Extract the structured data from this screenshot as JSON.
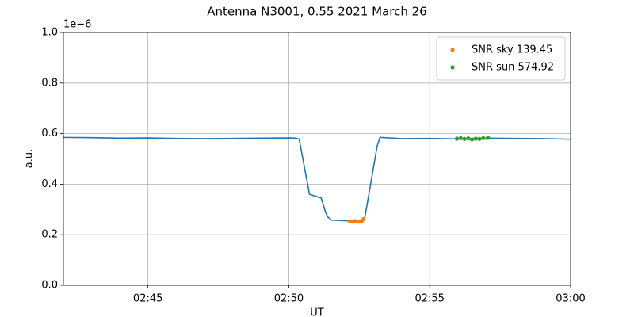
{
  "chart_data": {
    "type": "line",
    "title": "Antenna N3001, 0.55 2021 March 26",
    "x_label": "UT",
    "y_label": "a.u.",
    "y_offset_label": "1e−6",
    "xlim": [
      "02:42:00",
      "03:00:00"
    ],
    "xticks": [
      {
        "value": "02:45:00",
        "label": "02:45"
      },
      {
        "value": "02:50:00",
        "label": "02:50"
      },
      {
        "value": "02:55:00",
        "label": "02:55"
      },
      {
        "value": "03:00:00",
        "label": "03:00"
      }
    ],
    "ylim": [
      0,
      1
    ],
    "yticks": [
      {
        "value": 0,
        "label": "0.0"
      },
      {
        "value": 0.2,
        "label": "0.2"
      },
      {
        "value": 0.4,
        "label": "0.4"
      },
      {
        "value": 0.6,
        "label": "0.6"
      },
      {
        "value": 0.8,
        "label": "0.8"
      },
      {
        "value": 1,
        "label": "1.0"
      }
    ],
    "grid": true,
    "legend": "upper right",
    "series": [
      {
        "style": "line",
        "color": "#1f77b4",
        "x": [
          "02:42:00",
          "02:43:00",
          "02:44:00",
          "02:45:00",
          "02:46:00",
          "02:47:00",
          "02:48:00",
          "02:49:00",
          "02:50:00",
          "02:50:15",
          "02:50:22",
          "02:50:44",
          "02:51:09",
          "02:51:18",
          "02:51:23",
          "02:51:31",
          "02:52:08",
          "02:52:35",
          "02:52:42",
          "02:52:56",
          "02:53:08",
          "02:53:14",
          "02:54:00",
          "02:55:00",
          "02:56:00",
          "02:57:00",
          "02:58:00",
          "02:59:00",
          "03:00:00"
        ],
        "values": [
          0.585,
          0.584,
          0.582,
          0.583,
          0.581,
          0.58,
          0.581,
          0.582,
          0.583,
          0.582,
          0.578,
          0.36,
          0.345,
          0.29,
          0.27,
          0.258,
          0.255,
          0.255,
          0.27,
          0.42,
          0.55,
          0.585,
          0.58,
          0.581,
          0.579,
          0.582,
          0.581,
          0.58,
          0.578
        ]
      },
      {
        "style": "dot",
        "name": "SNR sky 139.45",
        "color": "#ff7f0e",
        "x": [
          "02:52:10",
          "02:52:15",
          "02:52:20",
          "02:52:25",
          "02:52:30",
          "02:52:35",
          "02:52:39"
        ],
        "values": [
          0.253,
          0.252,
          0.254,
          0.253,
          0.252,
          0.254,
          0.262
        ]
      },
      {
        "style": "dot",
        "name": "SNR sun 574.92",
        "color": "#2ca02c",
        "x": [
          "02:55:58",
          "02:56:06",
          "02:56:14",
          "02:56:22",
          "02:56:30",
          "02:56:38",
          "02:56:46",
          "02:56:54",
          "02:57:04"
        ],
        "values": [
          0.58,
          0.582,
          0.579,
          0.581,
          0.577,
          0.58,
          0.579,
          0.582,
          0.583
        ]
      }
    ]
  }
}
